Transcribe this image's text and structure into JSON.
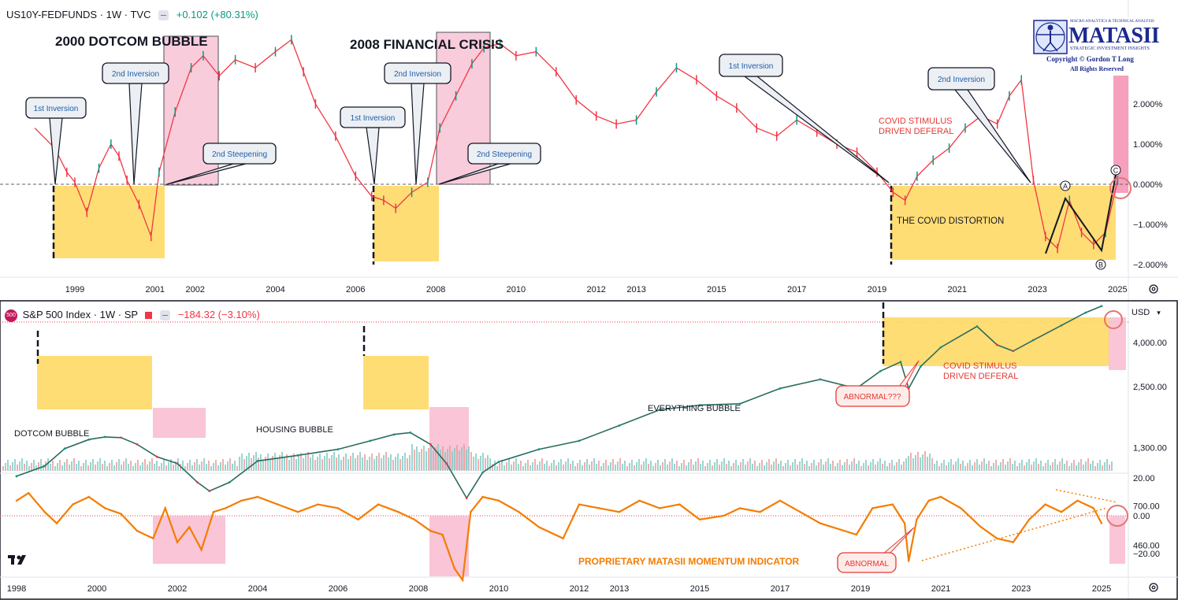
{
  "top_header": {
    "symbol": "US10Y-FEDFUNDS · 1W · TVC",
    "change": "+0.102 (+80.31%)"
  },
  "bottom_header": {
    "badge": "500",
    "symbol": "S&P 500 Index · 1W · SP",
    "change": "−184.32 (−3.10%)"
  },
  "currency": "USD",
  "logo": {
    "tagline": "MACRO ANALYTICS & TECHNICAL ANALYSIS",
    "name": "MATASII",
    "subtitle": "STRATEGIC INVESTMENT INSIGHTS",
    "copyright": "Copyright © Gordon T Long",
    "rights": "All Rights Reserved"
  },
  "tv_logo": "TV",
  "colors": {
    "up": "#089981",
    "down": "#f23645",
    "orange": "#f57c00",
    "yellow_box": "#ffd966",
    "pink_box": "#f8bbd0",
    "label_red": "#e53935"
  },
  "chart_data": [
    {
      "type": "line",
      "name": "US10Y-FEDFUNDS spread (weekly)",
      "y_axis_ticks": [
        "2.000%",
        "1.000%",
        "0.000%",
        "−1.000%",
        "−2.000%"
      ],
      "x_axis_ticks": [
        "1999",
        "2001",
        "2002",
        "2004",
        "2006",
        "2008",
        "2010",
        "2012",
        "2013",
        "2015",
        "2017",
        "2019",
        "2021",
        "2023",
        "2025"
      ],
      "x": [
        1998.0,
        1998.5,
        1998.8,
        1999.0,
        1999.3,
        1999.6,
        1999.9,
        2000.1,
        2000.3,
        2000.6,
        2000.9,
        2001.1,
        2001.5,
        2001.9,
        2002.2,
        2002.6,
        2003.0,
        2003.5,
        2004.0,
        2004.4,
        2004.7,
        2005.0,
        2005.5,
        2006.0,
        2006.4,
        2006.7,
        2007.0,
        2007.4,
        2007.8,
        2008.1,
        2008.5,
        2008.9,
        2009.2,
        2009.6,
        2010.0,
        2010.5,
        2011.0,
        2011.5,
        2012.0,
        2012.5,
        2013.0,
        2013.5,
        2014.0,
        2014.5,
        2015.0,
        2015.5,
        2016.0,
        2016.5,
        2017.0,
        2017.5,
        2018.0,
        2018.5,
        2019.0,
        2019.4,
        2019.7,
        2020.0,
        2020.4,
        2020.8,
        2021.2,
        2021.6,
        2022.0,
        2022.3,
        2022.6,
        2022.9,
        2023.2,
        2023.5,
        2023.8,
        2024.1,
        2024.4,
        2024.7,
        2025.0
      ],
      "y": [
        1.4,
        0.9,
        0.3,
        0.05,
        -0.7,
        0.4,
        1.0,
        0.7,
        0.1,
        -0.5,
        -1.3,
        0.3,
        1.8,
        2.9,
        3.2,
        2.7,
        3.1,
        2.9,
        3.3,
        3.6,
        2.8,
        2.0,
        1.2,
        0.2,
        -0.3,
        -0.4,
        -0.6,
        -0.2,
        0.05,
        1.4,
        2.2,
        3.0,
        3.4,
        3.5,
        3.2,
        3.3,
        2.8,
        2.1,
        1.7,
        1.5,
        1.6,
        2.3,
        2.9,
        2.6,
        2.2,
        1.9,
        1.4,
        1.2,
        1.6,
        1.3,
        1.0,
        0.8,
        0.3,
        -0.2,
        -0.4,
        0.2,
        0.6,
        0.9,
        1.4,
        1.7,
        1.5,
        2.2,
        2.6,
        0.1,
        -1.3,
        -1.6,
        -0.4,
        -1.2,
        -1.5,
        -1.2,
        0.1
      ],
      "zero_line": 0,
      "annotations": {
        "titles": [
          "2000 DOTCOM BUBBLE",
          "2008 FINANCIAL CRISIS"
        ],
        "callouts": [
          "1st Inversion",
          "2nd Inversion",
          "2nd Steepening",
          "1st Inversion",
          "2nd Inversion",
          "2nd Steepening",
          "1st Inversion",
          "2nd Inversion"
        ],
        "covid_label": "THE COVID DISTORTION",
        "covid_stimulus": [
          "COVID STIMULUS",
          "DRIVEN DEFERAL"
        ],
        "wave_labels": [
          "A",
          "B",
          "C"
        ]
      }
    },
    {
      "type": "line",
      "name": "S&P 500 Index (weekly, log scale)",
      "y_axis_ticks": [
        "4,000.00",
        "2,500.00",
        "1,300.00",
        "700.00",
        "460.00"
      ],
      "x": [
        1998.0,
        1998.7,
        1999.2,
        1999.8,
        2000.2,
        2000.6,
        2001.0,
        2001.5,
        2002.0,
        2002.5,
        2002.8,
        2003.3,
        2004.0,
        2005.0,
        2006.0,
        2006.8,
        2007.4,
        2007.8,
        2008.3,
        2008.7,
        2009.2,
        2009.6,
        2010.0,
        2011.0,
        2012.0,
        2013.0,
        2014.0,
        2015.0,
        2016.0,
        2017.0,
        2018.0,
        2018.9,
        2019.5,
        2020.0,
        2020.2,
        2020.5,
        2021.0,
        2021.9,
        2022.4,
        2022.8,
        2023.3,
        2024.0,
        2024.6,
        2025.0
      ],
      "y": [
        960,
        1070,
        1290,
        1420,
        1460,
        1450,
        1350,
        1180,
        1100,
        900,
        820,
        900,
        1130,
        1200,
        1280,
        1400,
        1500,
        1530,
        1350,
        1100,
        760,
        1000,
        1120,
        1280,
        1400,
        1650,
        1950,
        2050,
        2080,
        2450,
        2700,
        2450,
        2950,
        3250,
        2450,
        3100,
        3800,
        4750,
        3900,
        3650,
        4100,
        4800,
        5500,
        5900
      ],
      "annotations": {
        "labels": [
          "DOTCOM BUBBLE",
          "HOUSING BUBBLE",
          "EVERYTHING BUBBLE"
        ],
        "covid_stimulus": [
          "COVID STIMULUS",
          "DRIVEN DEFERAL"
        ],
        "abnormal_callout": "ABNORMAL???"
      }
    },
    {
      "type": "line",
      "name": "Proprietary MATASII Momentum Indicator",
      "y_axis_ticks": [
        "20.00",
        "0.00",
        "−20.00"
      ],
      "x_axis_ticks": [
        "1998",
        "2000",
        "2002",
        "2004",
        "2006",
        "2008",
        "2010",
        "2012",
        "2013",
        "2015",
        "2017",
        "2019",
        "2021",
        "2023",
        "2025"
      ],
      "x": [
        1998.0,
        1998.3,
        1998.7,
        1999.0,
        1999.4,
        1999.8,
        2000.2,
        2000.6,
        2001.0,
        2001.4,
        2001.7,
        2002.0,
        2002.3,
        2002.6,
        2002.9,
        2003.2,
        2003.6,
        2004.0,
        2004.5,
        2005.0,
        2005.5,
        2006.0,
        2006.5,
        2007.0,
        2007.5,
        2007.9,
        2008.3,
        2008.6,
        2008.9,
        2009.1,
        2009.3,
        2009.6,
        2010.0,
        2010.5,
        2011.0,
        2011.6,
        2012.0,
        2012.5,
        2013.0,
        2013.5,
        2014.0,
        2014.5,
        2015.0,
        2015.6,
        2016.0,
        2016.5,
        2017.0,
        2017.5,
        2018.0,
        2018.9,
        2019.3,
        2019.8,
        2020.1,
        2020.2,
        2020.4,
        2020.7,
        2021.0,
        2021.5,
        2022.0,
        2022.4,
        2022.8,
        2023.2,
        2023.6,
        2024.0,
        2024.4,
        2024.8,
        2025.0
      ],
      "y": [
        8,
        12,
        2,
        -4,
        6,
        10,
        4,
        1,
        -8,
        -12,
        4,
        -14,
        -6,
        -18,
        2,
        4,
        8,
        10,
        6,
        2,
        6,
        4,
        -2,
        6,
        2,
        -2,
        -8,
        -10,
        -28,
        -34,
        2,
        10,
        8,
        2,
        -6,
        -12,
        6,
        4,
        2,
        8,
        4,
        6,
        -2,
        0,
        4,
        2,
        8,
        2,
        -4,
        -10,
        4,
        6,
        -4,
        -24,
        -2,
        8,
        10,
        4,
        -6,
        -12,
        -14,
        -2,
        6,
        2,
        8,
        4,
        -4
      ],
      "zero_line": 0,
      "annotations": {
        "label": "PROPRIETARY MATASII MOMENTUM INDICATOR",
        "abnormal_callout": "ABNORMAL"
      }
    }
  ]
}
